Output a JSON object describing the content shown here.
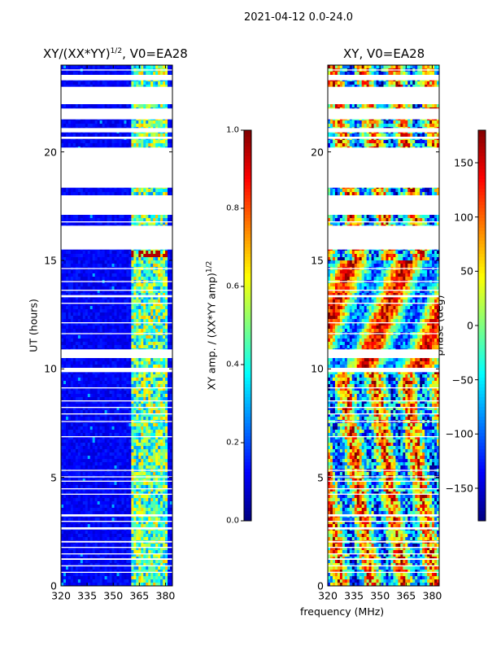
{
  "figure": {
    "suptitle": "2021-04-12 0.0-24.0",
    "xlabel": "frequency (MHz)"
  },
  "chart_data": [
    {
      "type": "heatmap",
      "title": "XY/(XX*YY)",
      "title_exponent": "1/2",
      "title_suffix": ", V0=EA28",
      "xlabel": "",
      "ylabel": "UT (hours)",
      "xlim": [
        320,
        384
      ],
      "ylim": [
        0,
        24
      ],
      "xticks": [
        "320",
        "335",
        "350",
        "365",
        "380"
      ],
      "yticks": [
        "0",
        "5",
        "10",
        "15",
        "20"
      ],
      "colorbar": {
        "label": "XY amp. / (XX*YY amp)",
        "label_exponent": "1/2",
        "range": [
          0.0,
          1.0
        ],
        "ticks": [
          "0.0",
          "0.2",
          "0.4",
          "0.6",
          "0.8",
          "1.0"
        ],
        "colormap": "jet"
      },
      "background_value": 0.08,
      "bright_band_mhz": [
        361,
        381
      ],
      "bright_value_range": [
        0.25,
        0.7
      ],
      "peak_value": 0.95,
      "data_gaps_hours": [
        [
          0.6,
          0.65
        ],
        [
          0.9,
          0.95
        ],
        [
          1.2,
          1.27
        ],
        [
          1.45,
          1.5
        ],
        [
          1.75,
          1.8
        ],
        [
          2.0,
          2.07
        ],
        [
          2.6,
          2.7
        ],
        [
          2.95,
          3.0
        ],
        [
          3.2,
          3.3
        ],
        [
          4.2,
          4.25
        ],
        [
          4.45,
          4.5
        ],
        [
          4.8,
          4.85
        ],
        [
          5.0,
          5.05
        ],
        [
          5.3,
          5.35
        ],
        [
          6.85,
          6.9
        ],
        [
          7.55,
          7.6
        ],
        [
          7.9,
          7.95
        ],
        [
          8.2,
          8.25
        ],
        [
          8.5,
          8.55
        ],
        [
          9.1,
          9.15
        ],
        [
          9.85,
          10.05
        ],
        [
          10.5,
          10.9
        ],
        [
          11.6,
          11.65
        ],
        [
          12.1,
          12.15
        ],
        [
          13.0,
          13.05
        ],
        [
          13.3,
          13.4
        ],
        [
          13.6,
          13.65
        ],
        [
          14.0,
          14.05
        ],
        [
          14.6,
          14.65
        ],
        [
          15.5,
          16.6
        ],
        [
          16.75,
          16.8
        ],
        [
          17.1,
          18.0
        ],
        [
          18.35,
          20.2
        ],
        [
          20.6,
          20.7
        ],
        [
          20.9,
          21.1
        ],
        [
          21.5,
          22.0
        ],
        [
          22.2,
          23.0
        ],
        [
          23.3,
          23.55
        ],
        [
          23.75,
          23.8
        ]
      ]
    },
    {
      "type": "heatmap",
      "title": "XY, V0=EA28",
      "xlabel": "",
      "ylabel": "",
      "xlim": [
        320,
        384
      ],
      "ylim": [
        0,
        24
      ],
      "xticks": [
        "320",
        "335",
        "350",
        "365",
        "380"
      ],
      "yticks": [
        "0",
        "5",
        "10",
        "15",
        "20"
      ],
      "colorbar": {
        "label": "phase (deg)",
        "range": [
          -180,
          180
        ],
        "ticks": [
          "−150",
          "−100",
          "−50",
          "0",
          "50",
          "100",
          "150"
        ],
        "colormap": "jet"
      },
      "data_gaps_hours": [
        [
          0.6,
          0.65
        ],
        [
          0.9,
          0.95
        ],
        [
          1.2,
          1.27
        ],
        [
          1.45,
          1.5
        ],
        [
          1.75,
          1.8
        ],
        [
          2.0,
          2.07
        ],
        [
          2.6,
          2.7
        ],
        [
          2.95,
          3.0
        ],
        [
          3.2,
          3.3
        ],
        [
          4.2,
          4.25
        ],
        [
          4.45,
          4.5
        ],
        [
          4.8,
          4.85
        ],
        [
          5.0,
          5.05
        ],
        [
          5.3,
          5.35
        ],
        [
          6.85,
          6.9
        ],
        [
          7.55,
          7.6
        ],
        [
          7.9,
          7.95
        ],
        [
          8.2,
          8.25
        ],
        [
          8.5,
          8.55
        ],
        [
          9.1,
          9.15
        ],
        [
          9.85,
          10.05
        ],
        [
          10.5,
          10.9
        ],
        [
          11.6,
          11.65
        ],
        [
          12.1,
          12.15
        ],
        [
          13.0,
          13.05
        ],
        [
          13.3,
          13.4
        ],
        [
          13.6,
          13.65
        ],
        [
          14.0,
          14.05
        ],
        [
          14.6,
          14.65
        ],
        [
          15.5,
          16.6
        ],
        [
          16.75,
          16.8
        ],
        [
          17.1,
          18.0
        ],
        [
          18.35,
          20.2
        ],
        [
          20.6,
          20.7
        ],
        [
          20.9,
          21.1
        ],
        [
          21.5,
          22.0
        ],
        [
          22.2,
          23.0
        ],
        [
          23.3,
          23.55
        ],
        [
          23.75,
          23.8
        ]
      ]
    }
  ]
}
